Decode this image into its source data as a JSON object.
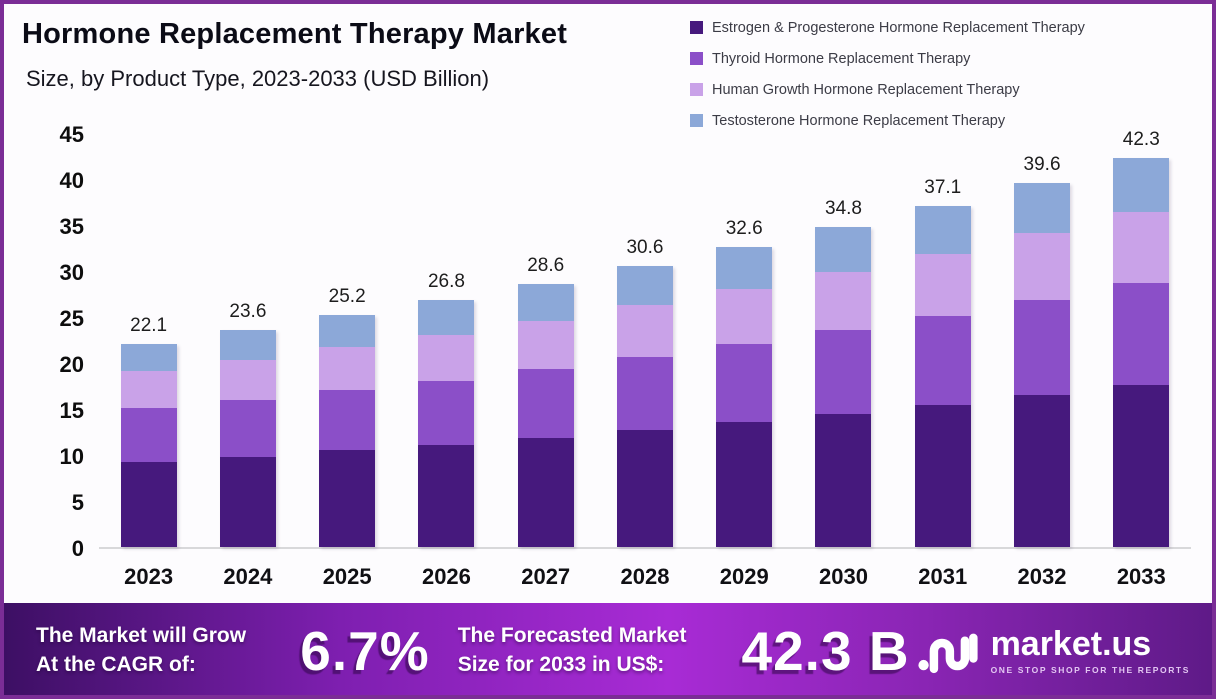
{
  "header": {
    "title": "Hormone Replacement Therapy Market",
    "subtitle": "Size, by Product Type, 2023-2033 (USD Billion)"
  },
  "chart_data": {
    "type": "bar",
    "stacked": true,
    "title": "Hormone Replacement Therapy Market Size, by Product Type, 2023-2033 (USD Billion)",
    "categories": [
      "2023",
      "2024",
      "2025",
      "2026",
      "2027",
      "2028",
      "2029",
      "2030",
      "2031",
      "2032",
      "2033"
    ],
    "series": [
      {
        "name": "Estrogen & Progesterone Hormone Replacement Therapy",
        "color": "#46197d",
        "values": [
          9.2,
          9.8,
          10.5,
          11.1,
          11.9,
          12.7,
          13.6,
          14.5,
          15.4,
          16.5,
          17.6
        ]
      },
      {
        "name": "Thyroid Hormone Replacement Therapy",
        "color": "#8b4fc8",
        "values": [
          5.9,
          6.2,
          6.6,
          7.0,
          7.5,
          8.0,
          8.5,
          9.1,
          9.7,
          10.4,
          11.1
        ]
      },
      {
        "name": "Human Growth Hormone Replacement Therapy",
        "color": "#c9a2e8",
        "values": [
          4.0,
          4.3,
          4.6,
          4.9,
          5.2,
          5.6,
          5.9,
          6.3,
          6.8,
          7.2,
          7.7
        ]
      },
      {
        "name": "Testosterone Hormone Replacement Therapy",
        "color": "#8ca8d8",
        "values": [
          3.0,
          3.3,
          3.5,
          3.8,
          4.0,
          4.3,
          4.6,
          4.9,
          5.2,
          5.5,
          5.9
        ]
      }
    ],
    "totals": [
      22.1,
      23.6,
      25.2,
      26.8,
      28.6,
      30.6,
      32.6,
      34.8,
      37.1,
      39.6,
      42.3
    ],
    "xlabel": "",
    "ylabel": "",
    "ylim": [
      0,
      45
    ],
    "yticks": [
      0,
      5,
      10,
      15,
      20,
      25,
      30,
      35,
      40,
      45
    ],
    "grid": false,
    "legend_position": "top-right"
  },
  "footer": {
    "grow_line1": "The Market will Grow",
    "grow_line2": "At the CAGR of:",
    "cagr_value": "6.7%",
    "forecast_line1": "The Forecasted Market",
    "forecast_line2": "Size for 2033 in US$:",
    "forecast_value": "42.3 B",
    "brand": "market.us",
    "brand_tagline": "ONE STOP SHOP FOR THE REPORTS"
  },
  "colors": {
    "page_border": "#7b2d96",
    "banner_gradient_left": "#3c0f63",
    "banner_gradient_mid": "#a82bd5",
    "banner_gradient_right": "#5e1a87",
    "baseline": "#d8d8da"
  }
}
